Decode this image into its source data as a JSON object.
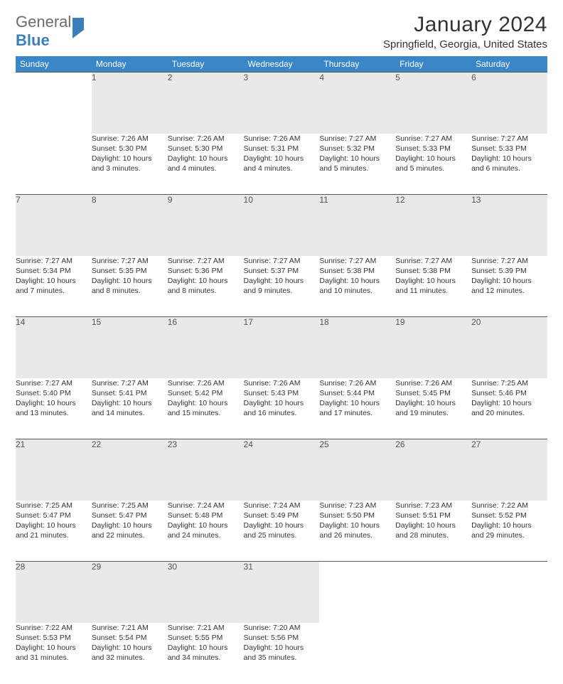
{
  "logo": {
    "part1": "General",
    "part2": "Blue"
  },
  "title": "January 2024",
  "location": "Springfield, Georgia, United States",
  "colors": {
    "header_bg": "#3b86c6",
    "header_text": "#ffffff",
    "daynum_bg": "#e9e9e9",
    "daynum_text": "#555555",
    "border": "#585858",
    "body_text": "#333333",
    "logo_gray": "#6b6b6b",
    "logo_blue": "#3b7fb8"
  },
  "day_headers": [
    "Sunday",
    "Monday",
    "Tuesday",
    "Wednesday",
    "Thursday",
    "Friday",
    "Saturday"
  ],
  "weeks": [
    [
      null,
      {
        "n": "1",
        "sr": "Sunrise: 7:26 AM",
        "ss": "Sunset: 5:30 PM",
        "d1": "Daylight: 10 hours",
        "d2": "and 3 minutes."
      },
      {
        "n": "2",
        "sr": "Sunrise: 7:26 AM",
        "ss": "Sunset: 5:30 PM",
        "d1": "Daylight: 10 hours",
        "d2": "and 4 minutes."
      },
      {
        "n": "3",
        "sr": "Sunrise: 7:26 AM",
        "ss": "Sunset: 5:31 PM",
        "d1": "Daylight: 10 hours",
        "d2": "and 4 minutes."
      },
      {
        "n": "4",
        "sr": "Sunrise: 7:27 AM",
        "ss": "Sunset: 5:32 PM",
        "d1": "Daylight: 10 hours",
        "d2": "and 5 minutes."
      },
      {
        "n": "5",
        "sr": "Sunrise: 7:27 AM",
        "ss": "Sunset: 5:33 PM",
        "d1": "Daylight: 10 hours",
        "d2": "and 5 minutes."
      },
      {
        "n": "6",
        "sr": "Sunrise: 7:27 AM",
        "ss": "Sunset: 5:33 PM",
        "d1": "Daylight: 10 hours",
        "d2": "and 6 minutes."
      }
    ],
    [
      {
        "n": "7",
        "sr": "Sunrise: 7:27 AM",
        "ss": "Sunset: 5:34 PM",
        "d1": "Daylight: 10 hours",
        "d2": "and 7 minutes."
      },
      {
        "n": "8",
        "sr": "Sunrise: 7:27 AM",
        "ss": "Sunset: 5:35 PM",
        "d1": "Daylight: 10 hours",
        "d2": "and 8 minutes."
      },
      {
        "n": "9",
        "sr": "Sunrise: 7:27 AM",
        "ss": "Sunset: 5:36 PM",
        "d1": "Daylight: 10 hours",
        "d2": "and 8 minutes."
      },
      {
        "n": "10",
        "sr": "Sunrise: 7:27 AM",
        "ss": "Sunset: 5:37 PM",
        "d1": "Daylight: 10 hours",
        "d2": "and 9 minutes."
      },
      {
        "n": "11",
        "sr": "Sunrise: 7:27 AM",
        "ss": "Sunset: 5:38 PM",
        "d1": "Daylight: 10 hours",
        "d2": "and 10 minutes."
      },
      {
        "n": "12",
        "sr": "Sunrise: 7:27 AM",
        "ss": "Sunset: 5:38 PM",
        "d1": "Daylight: 10 hours",
        "d2": "and 11 minutes."
      },
      {
        "n": "13",
        "sr": "Sunrise: 7:27 AM",
        "ss": "Sunset: 5:39 PM",
        "d1": "Daylight: 10 hours",
        "d2": "and 12 minutes."
      }
    ],
    [
      {
        "n": "14",
        "sr": "Sunrise: 7:27 AM",
        "ss": "Sunset: 5:40 PM",
        "d1": "Daylight: 10 hours",
        "d2": "and 13 minutes."
      },
      {
        "n": "15",
        "sr": "Sunrise: 7:27 AM",
        "ss": "Sunset: 5:41 PM",
        "d1": "Daylight: 10 hours",
        "d2": "and 14 minutes."
      },
      {
        "n": "16",
        "sr": "Sunrise: 7:26 AM",
        "ss": "Sunset: 5:42 PM",
        "d1": "Daylight: 10 hours",
        "d2": "and 15 minutes."
      },
      {
        "n": "17",
        "sr": "Sunrise: 7:26 AM",
        "ss": "Sunset: 5:43 PM",
        "d1": "Daylight: 10 hours",
        "d2": "and 16 minutes."
      },
      {
        "n": "18",
        "sr": "Sunrise: 7:26 AM",
        "ss": "Sunset: 5:44 PM",
        "d1": "Daylight: 10 hours",
        "d2": "and 17 minutes."
      },
      {
        "n": "19",
        "sr": "Sunrise: 7:26 AM",
        "ss": "Sunset: 5:45 PM",
        "d1": "Daylight: 10 hours",
        "d2": "and 19 minutes."
      },
      {
        "n": "20",
        "sr": "Sunrise: 7:25 AM",
        "ss": "Sunset: 5:46 PM",
        "d1": "Daylight: 10 hours",
        "d2": "and 20 minutes."
      }
    ],
    [
      {
        "n": "21",
        "sr": "Sunrise: 7:25 AM",
        "ss": "Sunset: 5:47 PM",
        "d1": "Daylight: 10 hours",
        "d2": "and 21 minutes."
      },
      {
        "n": "22",
        "sr": "Sunrise: 7:25 AM",
        "ss": "Sunset: 5:47 PM",
        "d1": "Daylight: 10 hours",
        "d2": "and 22 minutes."
      },
      {
        "n": "23",
        "sr": "Sunrise: 7:24 AM",
        "ss": "Sunset: 5:48 PM",
        "d1": "Daylight: 10 hours",
        "d2": "and 24 minutes."
      },
      {
        "n": "24",
        "sr": "Sunrise: 7:24 AM",
        "ss": "Sunset: 5:49 PM",
        "d1": "Daylight: 10 hours",
        "d2": "and 25 minutes."
      },
      {
        "n": "25",
        "sr": "Sunrise: 7:23 AM",
        "ss": "Sunset: 5:50 PM",
        "d1": "Daylight: 10 hours",
        "d2": "and 26 minutes."
      },
      {
        "n": "26",
        "sr": "Sunrise: 7:23 AM",
        "ss": "Sunset: 5:51 PM",
        "d1": "Daylight: 10 hours",
        "d2": "and 28 minutes."
      },
      {
        "n": "27",
        "sr": "Sunrise: 7:22 AM",
        "ss": "Sunset: 5:52 PM",
        "d1": "Daylight: 10 hours",
        "d2": "and 29 minutes."
      }
    ],
    [
      {
        "n": "28",
        "sr": "Sunrise: 7:22 AM",
        "ss": "Sunset: 5:53 PM",
        "d1": "Daylight: 10 hours",
        "d2": "and 31 minutes."
      },
      {
        "n": "29",
        "sr": "Sunrise: 7:21 AM",
        "ss": "Sunset: 5:54 PM",
        "d1": "Daylight: 10 hours",
        "d2": "and 32 minutes."
      },
      {
        "n": "30",
        "sr": "Sunrise: 7:21 AM",
        "ss": "Sunset: 5:55 PM",
        "d1": "Daylight: 10 hours",
        "d2": "and 34 minutes."
      },
      {
        "n": "31",
        "sr": "Sunrise: 7:20 AM",
        "ss": "Sunset: 5:56 PM",
        "d1": "Daylight: 10 hours",
        "d2": "and 35 minutes."
      },
      null,
      null,
      null
    ]
  ]
}
